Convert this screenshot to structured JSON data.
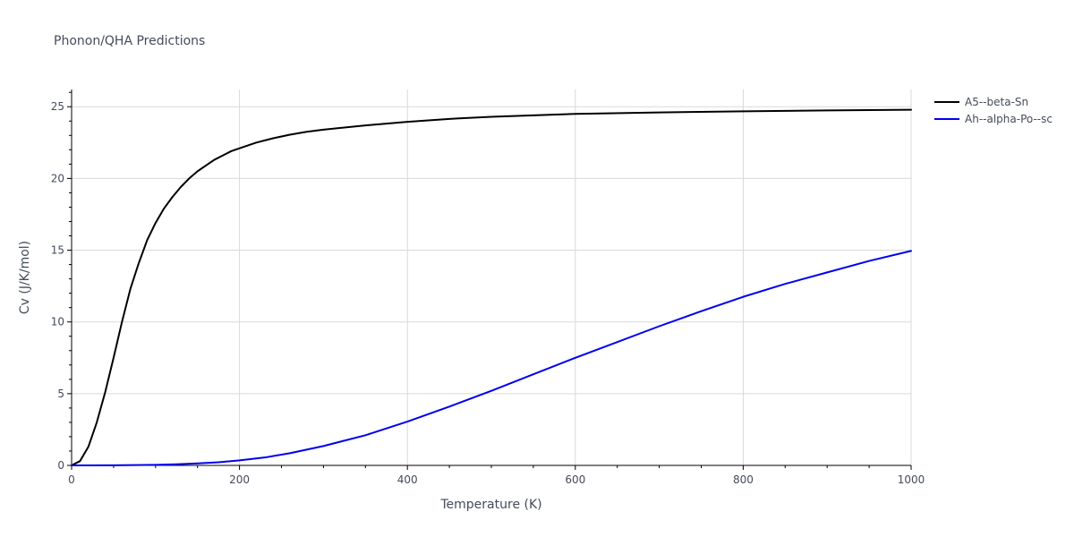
{
  "chart_data": {
    "type": "line",
    "title": "Phonon/QHA Predictions",
    "xlabel": "Temperature (K)",
    "ylabel": "Cv (J/K/mol)",
    "xlim": [
      0,
      1000
    ],
    "ylim": [
      0,
      26.2
    ],
    "x_ticks": [
      0,
      200,
      400,
      600,
      800,
      1000
    ],
    "y_ticks": [
      0,
      5,
      10,
      15,
      20,
      25
    ],
    "x_minor_ticks": [
      50,
      100,
      150,
      250,
      300,
      350,
      450,
      500,
      550,
      650,
      700,
      750,
      850,
      900,
      950
    ],
    "y_minor_ticks": [
      1,
      2,
      3,
      4,
      6,
      7,
      8,
      9,
      11,
      12,
      13,
      14,
      16,
      17,
      18,
      19,
      21,
      22,
      23,
      24,
      26
    ],
    "grid": true,
    "legend_position": "top-right",
    "series": [
      {
        "name": "A5--beta-Sn",
        "color": "#000000",
        "x": [
          0,
          10,
          20,
          30,
          40,
          50,
          60,
          70,
          80,
          90,
          100,
          110,
          120,
          130,
          140,
          150,
          160,
          170,
          180,
          190,
          200,
          220,
          240,
          260,
          280,
          300,
          350,
          400,
          450,
          500,
          600,
          700,
          800,
          900,
          1000
        ],
        "y": [
          0,
          0.3,
          1.3,
          3.0,
          5.1,
          7.5,
          10.0,
          12.3,
          14.1,
          15.7,
          16.9,
          17.9,
          18.7,
          19.4,
          20.0,
          20.5,
          20.9,
          21.3,
          21.6,
          21.9,
          22.1,
          22.5,
          22.8,
          23.05,
          23.25,
          23.4,
          23.7,
          23.95,
          24.15,
          24.3,
          24.5,
          24.6,
          24.68,
          24.74,
          24.79
        ]
      },
      {
        "name": "Ah--alpha-Po--sc",
        "color": "#0000ee",
        "x": [
          0,
          50,
          100,
          125,
          150,
          175,
          200,
          230,
          260,
          300,
          350,
          400,
          450,
          500,
          550,
          600,
          650,
          700,
          750,
          800,
          850,
          900,
          950,
          1000
        ],
        "y": [
          0,
          0.01,
          0.04,
          0.08,
          0.14,
          0.22,
          0.35,
          0.55,
          0.85,
          1.35,
          2.1,
          3.05,
          4.1,
          5.2,
          6.35,
          7.5,
          8.6,
          9.7,
          10.75,
          11.75,
          12.65,
          13.45,
          14.25,
          14.95
        ]
      }
    ]
  }
}
